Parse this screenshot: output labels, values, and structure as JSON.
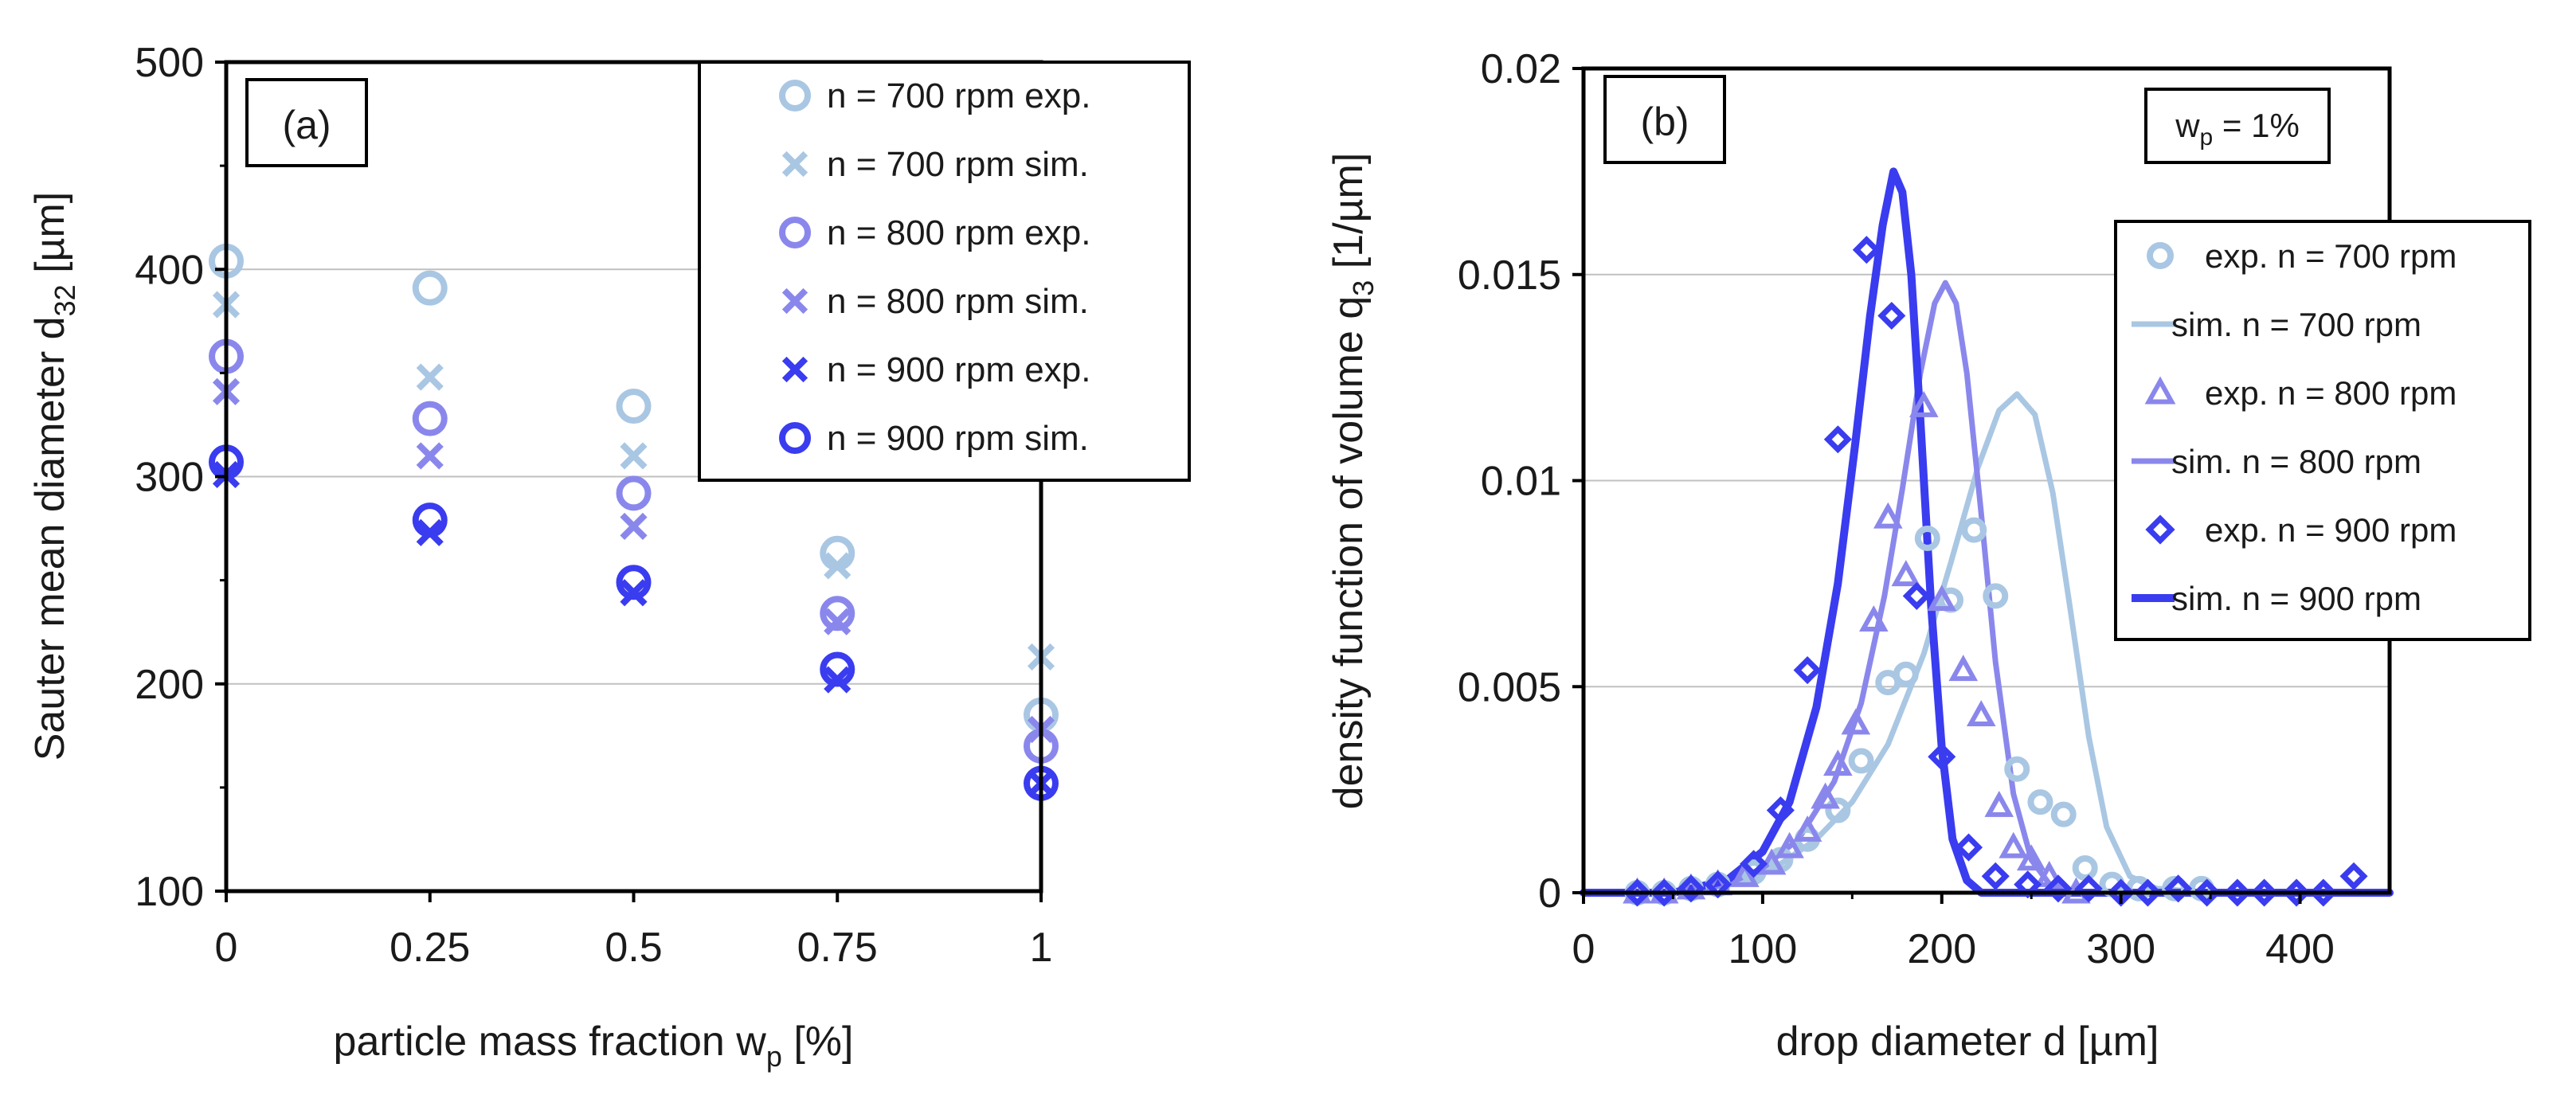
{
  "colors": {
    "n700": "#a9c7e3",
    "n800": "#8a87ec",
    "n900": "#3a3cf0",
    "axis": "#000000",
    "grid": "#c0c0c0"
  },
  "chart_data": [
    {
      "type": "scatter",
      "panel_label": "(a)",
      "xlabel_main": "particle mass fraction w",
      "xlabel_sub": "p",
      "xlabel_unit": " [%]",
      "ylabel_main": "Sauter mean diameter d",
      "ylabel_sub": "32",
      "ylabel_unit": " [µm]",
      "xlim": [
        0,
        1
      ],
      "ylim": [
        100,
        500
      ],
      "xticks": [
        0,
        0.25,
        0.5,
        0.75,
        1
      ],
      "xtick_labels": [
        "0",
        "0.25",
        "0.5",
        "0.75",
        "1"
      ],
      "yticks": [
        100,
        200,
        300,
        400,
        500
      ],
      "ytick_labels": [
        "100",
        "200",
        "300",
        "400",
        "500"
      ],
      "grid": "horizontal",
      "legend_position": "top-right",
      "series": [
        {
          "name": "n = 700 rpm exp.",
          "marker": "circle",
          "color_key": "n700",
          "x": [
            0,
            0.25,
            0.5,
            0.75,
            1
          ],
          "values": [
            404,
            391,
            334,
            263,
            185
          ]
        },
        {
          "name": "n = 700 rpm sim.",
          "marker": "x",
          "color_key": "n700",
          "x": [
            0,
            0.25,
            0.5,
            0.75,
            1
          ],
          "values": [
            383,
            348,
            310,
            257,
            213
          ]
        },
        {
          "name": "n = 800 rpm exp.",
          "marker": "circle",
          "color_key": "n800",
          "x": [
            0,
            0.25,
            0.5,
            0.75,
            1
          ],
          "values": [
            358,
            328,
            292,
            234,
            170
          ]
        },
        {
          "name": "n = 800 rpm sim.",
          "marker": "x",
          "color_key": "n800",
          "x": [
            0,
            0.25,
            0.5,
            0.75,
            1
          ],
          "values": [
            341,
            310,
            276,
            230,
            178
          ]
        },
        {
          "name": "n = 900 rpm exp.",
          "marker": "x",
          "color_key": "n900",
          "x": [
            0,
            0.25,
            0.5,
            0.75,
            1
          ],
          "values": [
            301,
            273,
            244,
            202,
            152
          ]
        },
        {
          "name": "n = 900 rpm sim.",
          "marker": "circle",
          "color_key": "n900",
          "x": [
            0,
            0.25,
            0.5,
            0.75,
            1
          ],
          "values": [
            307,
            279,
            249,
            207,
            152
          ]
        }
      ]
    },
    {
      "type": "line",
      "panel_label": "(b)",
      "annotation_main": "w",
      "annotation_sub": "p",
      "annotation_rest": " = 1%",
      "xlabel": "drop diameter d [µm]",
      "ylabel_main": "density function of volume q",
      "ylabel_sub": "3",
      "ylabel_unit": " [1/µm]",
      "xlim": [
        0,
        450
      ],
      "ylim": [
        0,
        0.02
      ],
      "xticks": [
        0,
        100,
        200,
        300,
        400
      ],
      "xtick_labels": [
        "0",
        "100",
        "200",
        "300",
        "400"
      ],
      "yticks": [
        0,
        0.005,
        0.01,
        0.015,
        0.02
      ],
      "ytick_labels": [
        "0",
        "0.005",
        "0.01",
        "0.015",
        "0.02"
      ],
      "grid": "horizontal",
      "legend_position": "right",
      "series": [
        {
          "name": "exp. n = 700 rpm",
          "kind": "marker",
          "marker": "circle",
          "color_key": "n700",
          "x": [
            30,
            45,
            60,
            75,
            95,
            110,
            125,
            142,
            155,
            170,
            180,
            192,
            205,
            218,
            230,
            242,
            255,
            268,
            280,
            295,
            310,
            330,
            345
          ],
          "values": [
            0,
            0,
            0.0001,
            0.0002,
            0.0005,
            0.0008,
            0.0013,
            0.002,
            0.0032,
            0.0051,
            0.0053,
            0.0086,
            0.0071,
            0.0088,
            0.0072,
            0.003,
            0.0022,
            0.0019,
            0.0006,
            0.0002,
            0.0001,
            0.0001,
            0.0001
          ]
        },
        {
          "name": "sim. n = 700 rpm",
          "kind": "line",
          "color_key": "n700",
          "stroke": 7,
          "x": [
            0,
            60,
            90,
            110,
            130,
            150,
            170,
            190,
            205,
            220,
            232,
            242,
            252,
            262,
            272,
            282,
            292,
            305,
            320,
            350,
            450
          ],
          "values": [
            0,
            0,
            0.0003,
            0.0007,
            0.0013,
            0.0022,
            0.0036,
            0.0058,
            0.008,
            0.0103,
            0.0117,
            0.0121,
            0.0116,
            0.0097,
            0.0068,
            0.0038,
            0.0016,
            0.0004,
            0.0001,
            0,
            0
          ]
        },
        {
          "name": "exp. n = 800 rpm",
          "kind": "marker",
          "marker": "triangle",
          "color_key": "n800",
          "x": [
            30,
            45,
            60,
            75,
            90,
            105,
            115,
            125,
            135,
            142,
            152,
            162,
            170,
            180,
            190,
            200,
            212,
            222,
            232,
            240,
            250,
            260,
            275
          ],
          "values": [
            0,
            0,
            0.0001,
            0.0002,
            0.0004,
            0.0007,
            0.0011,
            0.0015,
            0.0023,
            0.0031,
            0.0041,
            0.0066,
            0.0091,
            0.0077,
            0.0118,
            0.0071,
            0.0054,
            0.0043,
            0.0021,
            0.0011,
            0.0008,
            0.0004,
            0
          ]
        },
        {
          "name": "sim. n = 800 rpm",
          "kind": "line",
          "color_key": "n800",
          "stroke": 7,
          "x": [
            0,
            50,
            80,
            100,
            120,
            140,
            155,
            168,
            178,
            188,
            196,
            202,
            208,
            214,
            222,
            230,
            240,
            250,
            262,
            280,
            450
          ],
          "values": [
            0,
            0,
            0.0002,
            0.0006,
            0.0013,
            0.0027,
            0.0046,
            0.0072,
            0.0098,
            0.0126,
            0.0143,
            0.0148,
            0.0143,
            0.0126,
            0.0092,
            0.0056,
            0.0024,
            0.0008,
            0.0001,
            0,
            0
          ]
        },
        {
          "name": "exp. n = 900 rpm",
          "kind": "marker",
          "marker": "diamond",
          "color_key": "n900",
          "x": [
            30,
            45,
            60,
            75,
            95,
            110,
            125,
            142,
            158,
            172,
            186,
            200,
            215,
            230,
            248,
            265,
            282,
            300,
            315,
            332,
            348,
            365,
            380,
            398,
            413,
            430
          ],
          "values": [
            0,
            0,
            0.0001,
            0.0002,
            0.0007,
            0.002,
            0.0054,
            0.011,
            0.0156,
            0.014,
            0.0072,
            0.0033,
            0.0011,
            0.0004,
            0.0002,
            0.0001,
            0.0001,
            0,
            0,
            0.0001,
            0,
            0,
            0,
            0,
            0,
            0.0004
          ]
        },
        {
          "name": "sim. n = 900 rpm",
          "kind": "line",
          "color_key": "n900",
          "stroke": 10,
          "x": [
            0,
            50,
            80,
            100,
            115,
            130,
            142,
            152,
            160,
            167,
            173,
            178,
            183,
            188,
            194,
            200,
            206,
            214,
            222,
            235,
            450
          ],
          "values": [
            0,
            0,
            0.0003,
            0.001,
            0.0022,
            0.0045,
            0.0075,
            0.011,
            0.014,
            0.0162,
            0.0175,
            0.017,
            0.015,
            0.0115,
            0.007,
            0.0035,
            0.0013,
            0.0003,
            0,
            0,
            0
          ]
        }
      ]
    }
  ]
}
